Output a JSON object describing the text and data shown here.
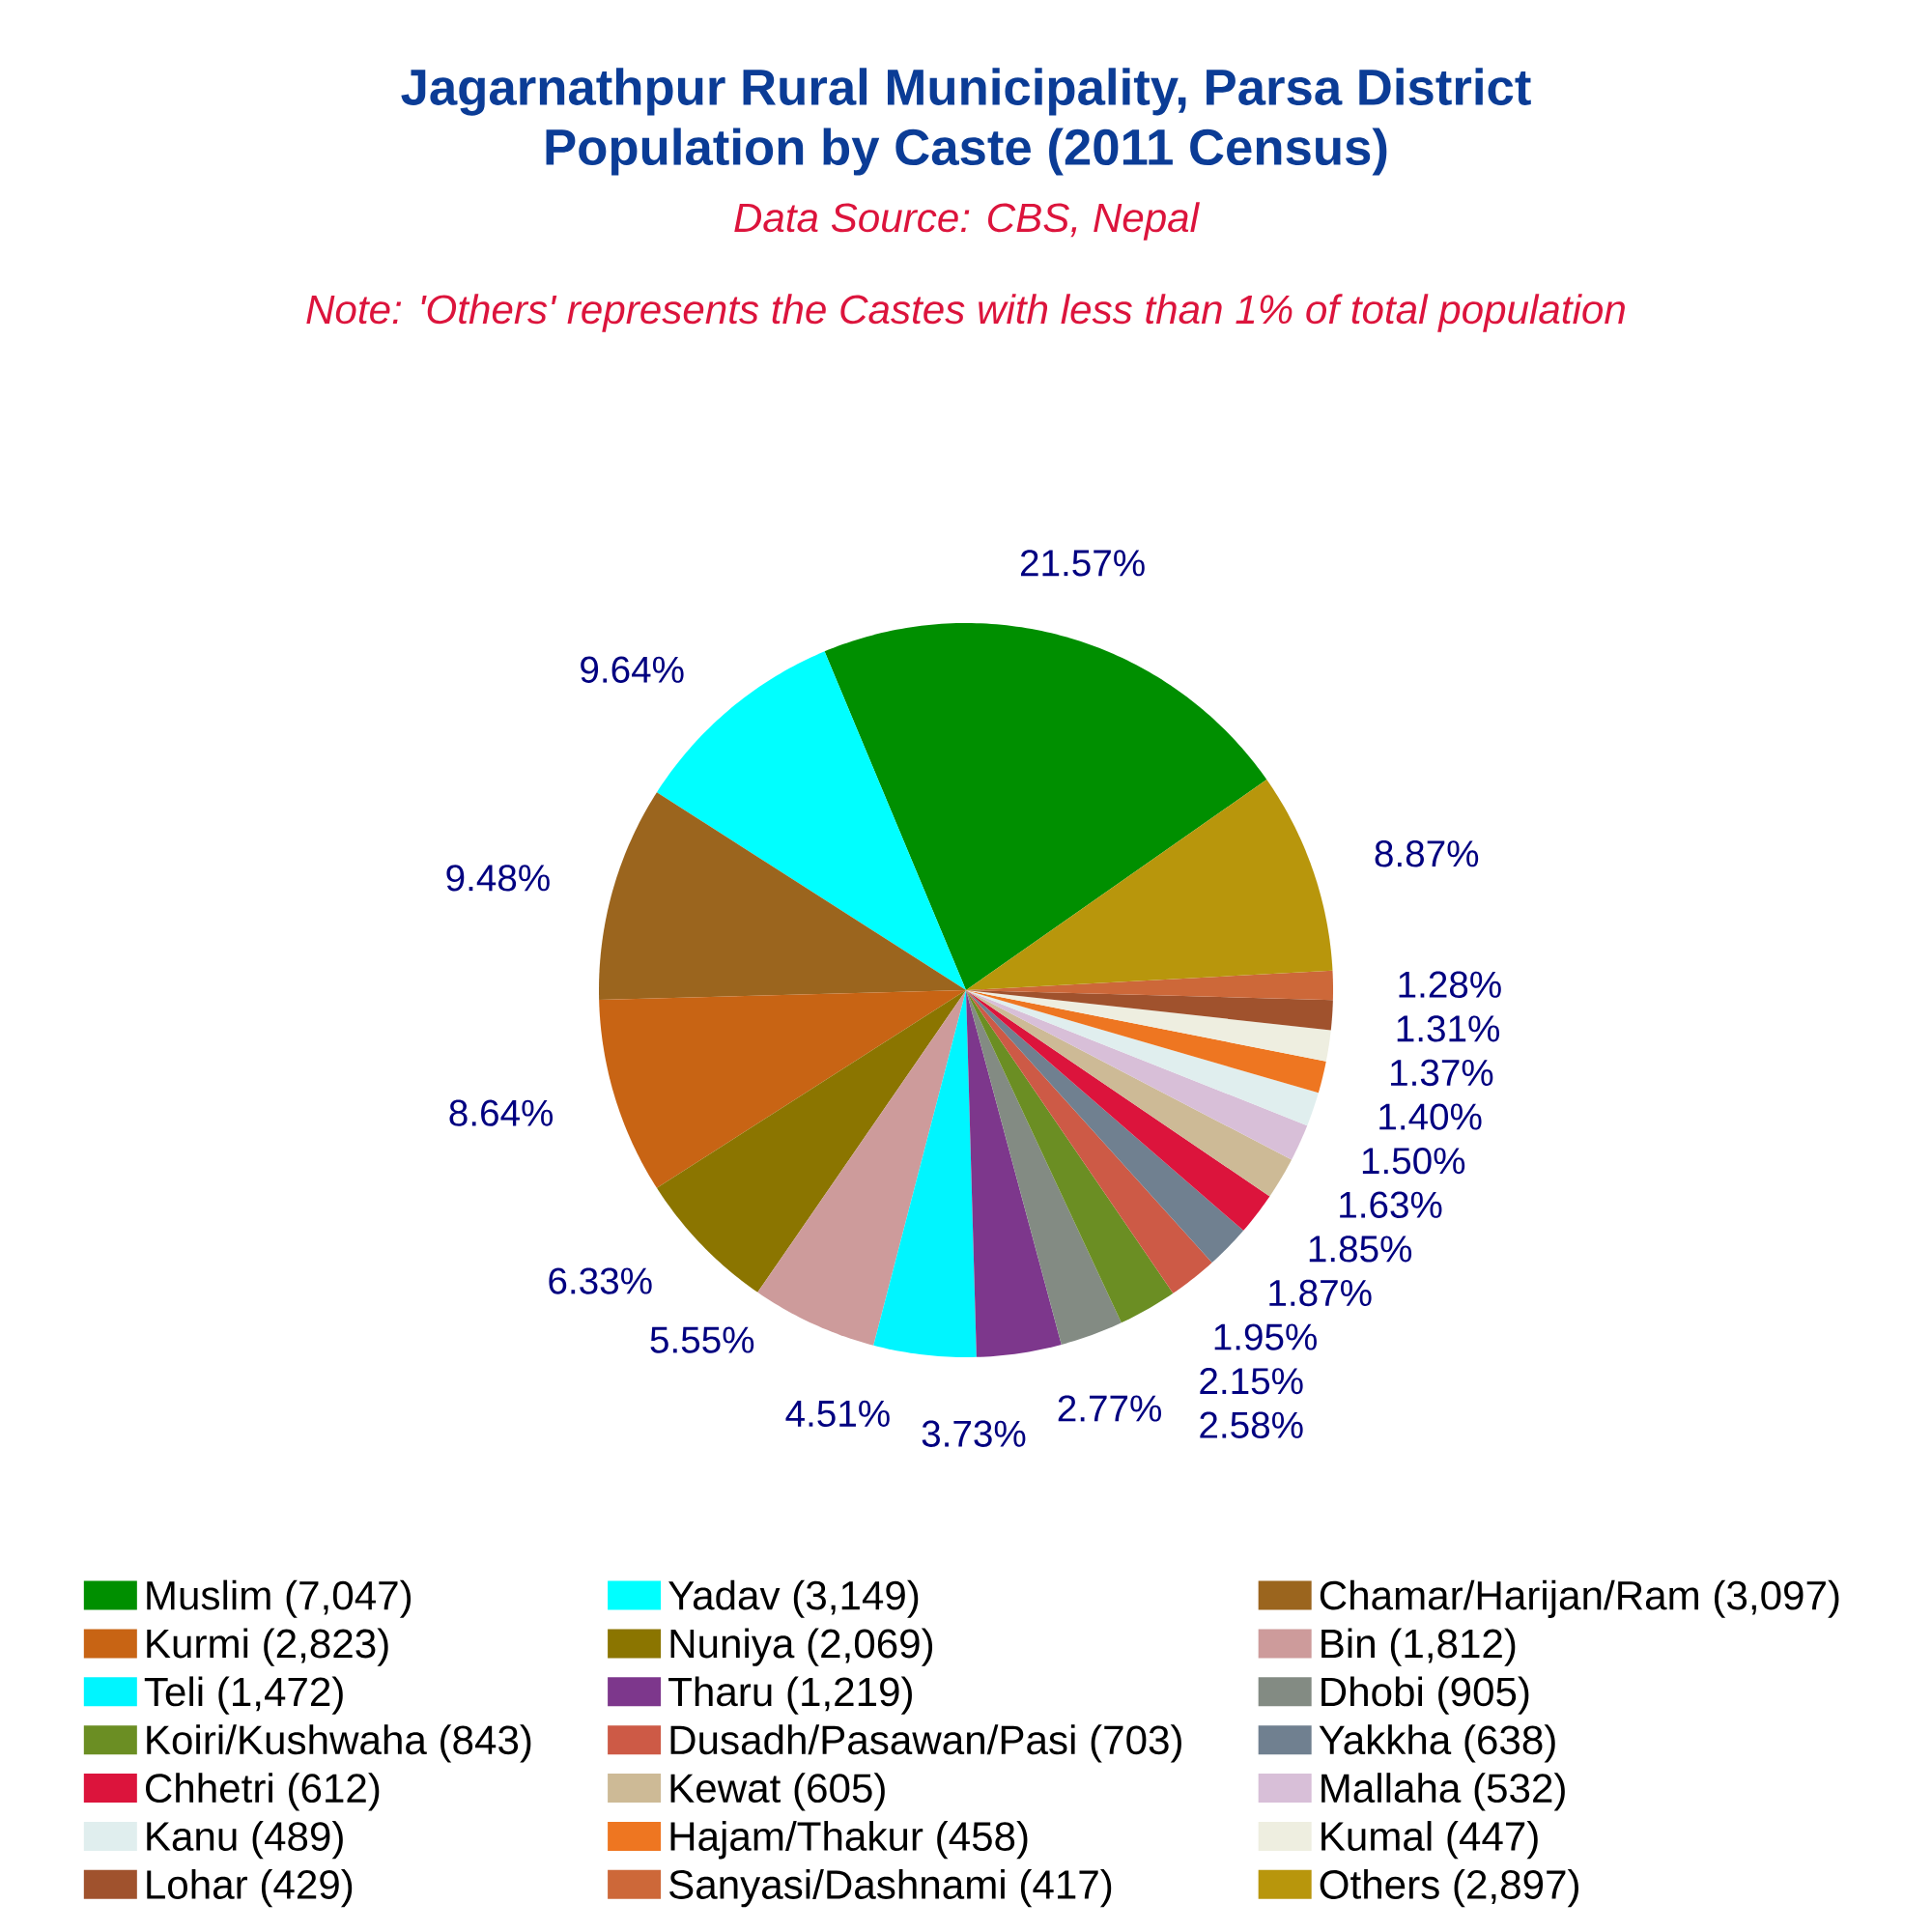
{
  "chart_data": {
    "type": "pie",
    "title": "Jagarnathpur Rural Municipality, Parsa District",
    "subtitle": "Population by Caste (2011 Census)",
    "annotations": [
      "Data Source: CBS, Nepal",
      "Note: 'Others' represents the Castes with less than 1% of total population"
    ],
    "categories": [
      "Muslim (7,047)",
      "Yadav (3,149)",
      "Chamar/Harijan/Ram (3,097)",
      "Kurmi (2,823)",
      "Nuniya (2,069)",
      "Bin (1,812)",
      "Teli (1,472)",
      "Tharu (1,219)",
      "Dhobi (905)",
      "Koiri/Kushwaha (843)",
      "Dusadh/Pasawan/Pasi (703)",
      "Yakkha (638)",
      "Chhetri (612)",
      "Kewat (605)",
      "Mallaha (532)",
      "Kanu (489)",
      "Hajam/Thakur (458)",
      "Kumal (447)",
      "Lohar (429)",
      "Sanyasi/Dashnami (417)",
      "Others (2,897)"
    ],
    "values": [
      21.57,
      9.64,
      9.48,
      8.64,
      6.33,
      5.55,
      4.51,
      3.73,
      2.77,
      2.58,
      2.15,
      1.95,
      1.87,
      1.85,
      1.63,
      1.5,
      1.4,
      1.37,
      1.31,
      1.28,
      8.87
    ],
    "value_labels": [
      "21.57%",
      "9.64%",
      "9.48%",
      "8.64%",
      "6.33%",
      "5.55%",
      "4.51%",
      "3.73%",
      "2.77%",
      "2.58%",
      "2.15%",
      "1.95%",
      "1.87%",
      "1.85%",
      "1.63%",
      "1.50%",
      "1.40%",
      "1.37%",
      "1.31%",
      "1.28%",
      "8.87%"
    ],
    "colors": [
      "#008f00",
      "#00ffff",
      "#9b651e",
      "#c86414",
      "#8b7500",
      "#cd9b9b",
      "#00f5ff",
      "#7d378c",
      "#838b83",
      "#6b8e23",
      "#cd5a46",
      "#708090",
      "#dc143c",
      "#cdba96",
      "#d8bfd8",
      "#e0eeee",
      "#ee7621",
      "#eeeee0",
      "#a0522d",
      "#cd6839",
      "#b8960c"
    ],
    "legend": "bottom"
  }
}
